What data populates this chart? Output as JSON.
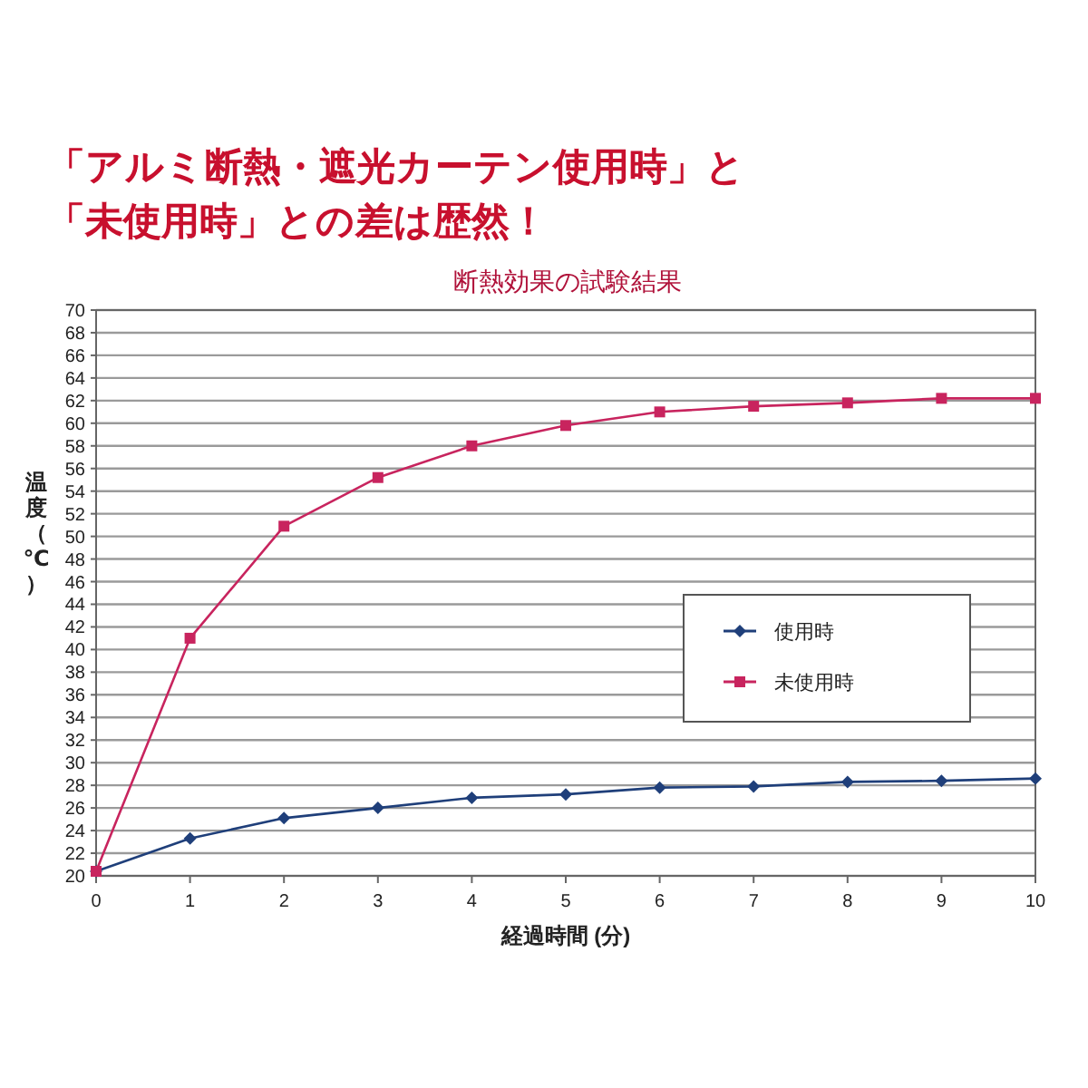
{
  "chart_data": {
    "type": "line",
    "title": "「アルミ断熱・遮光カーテン使用時」と「未使用時」との差は歴然！",
    "subtitle": "断熱効果の試験結果",
    "xlabel": "経過時間 (分)",
    "ylabel": "温度（℃）",
    "x": [
      0,
      1,
      2,
      3,
      4,
      5,
      6,
      7,
      8,
      9,
      10
    ],
    "series": [
      {
        "name": "使用時",
        "color": "#1f3f7a",
        "marker": "diamond",
        "values": [
          20.4,
          23.3,
          25.1,
          26.0,
          26.9,
          27.2,
          27.8,
          27.9,
          28.3,
          28.4,
          28.6
        ]
      },
      {
        "name": "未使用時",
        "color": "#c8245e",
        "marker": "square",
        "values": [
          20.4,
          41.0,
          50.9,
          55.2,
          58.0,
          59.8,
          61.0,
          61.5,
          61.8,
          62.2,
          62.2
        ]
      }
    ],
    "xlim": [
      0,
      10
    ],
    "xticks": [
      0,
      1,
      2,
      3,
      4,
      5,
      6,
      7,
      8,
      9,
      10
    ],
    "ylim": [
      20,
      70
    ],
    "yticks": [
      20,
      22,
      24,
      26,
      28,
      30,
      32,
      34,
      36,
      38,
      40,
      42,
      44,
      46,
      48,
      50,
      52,
      54,
      56,
      58,
      60,
      62,
      64,
      66,
      68,
      70
    ],
    "grid": "y",
    "legend": "right"
  }
}
